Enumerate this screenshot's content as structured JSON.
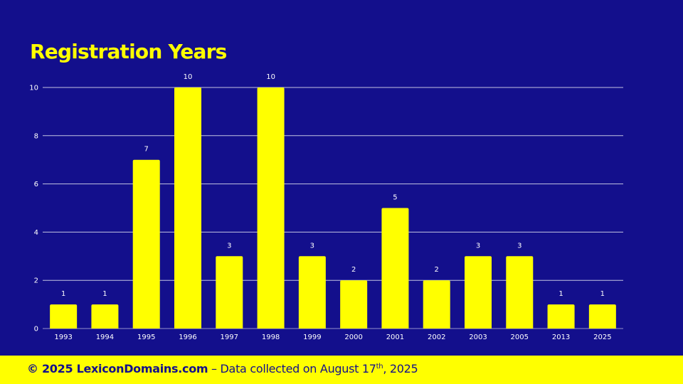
{
  "theme": {
    "background": "#130f8c",
    "accent": "#ffff00",
    "grid": "#ffffff"
  },
  "chart_data": {
    "type": "bar",
    "title": "Registration Years",
    "categories": [
      "1993",
      "1994",
      "1995",
      "1996",
      "1997",
      "1998",
      "1999",
      "2000",
      "2001",
      "2002",
      "2003",
      "2005",
      "2013",
      "2025"
    ],
    "values": [
      1,
      1,
      7,
      10,
      3,
      10,
      3,
      2,
      5,
      2,
      3,
      3,
      1,
      1
    ],
    "ylim": [
      0,
      10
    ],
    "yticks": [
      0,
      2,
      4,
      6,
      8,
      10
    ],
    "xlabel": "",
    "ylabel": "",
    "grid": true,
    "data_labels": true,
    "bar_color": "#ffff00"
  },
  "footer": {
    "copyright": "© 2025 LexiconDomains.com",
    "note_prefix": " – Data collected on August 17",
    "note_sup": "th",
    "note_suffix": ", 2025"
  }
}
